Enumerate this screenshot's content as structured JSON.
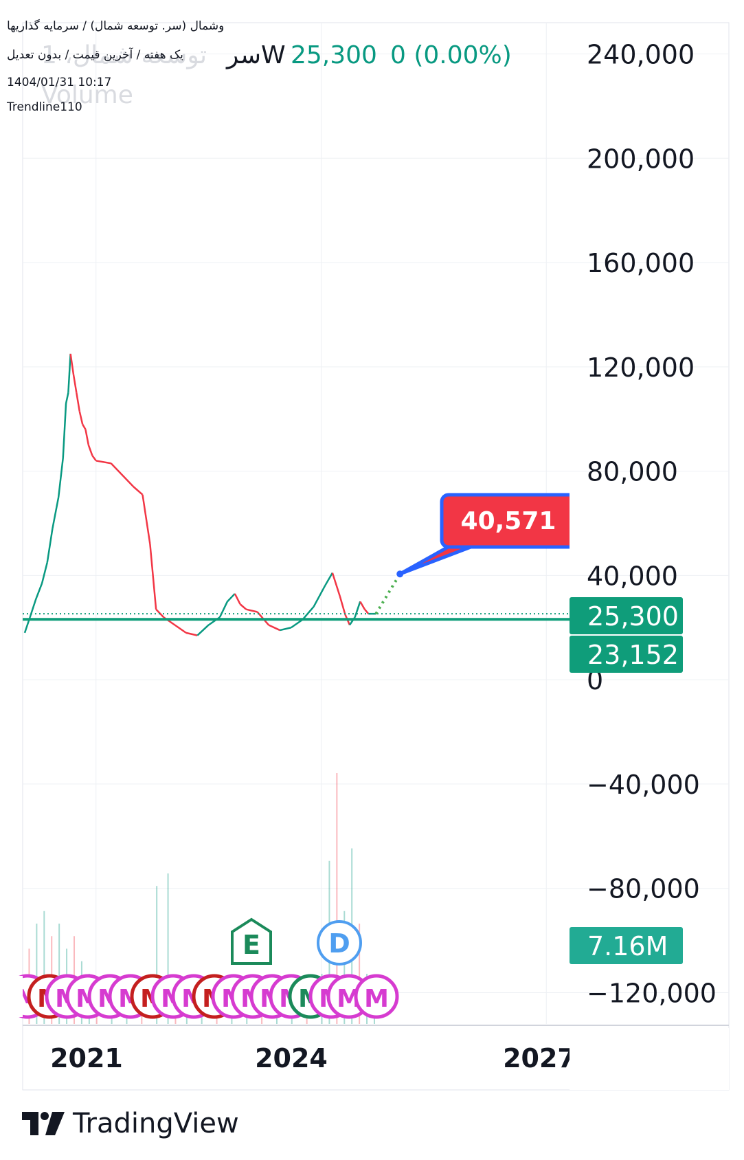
{
  "header": {
    "line1": "وشمال (سر. توسعه شمال) / سرمایه گذاریها",
    "line2": "یک هفته / آخرین قیمت / بدون تعدیل",
    "line3": "1404/01/31 10:17",
    "line4": "Trendline110",
    "ticker_symbol": "سرW",
    "ticker_ghost": "توسعه شمال، 1",
    "volume_ghost": "Volume",
    "price": "25,300",
    "change": "0 (0.00%)"
  },
  "colors": {
    "up": "#089981",
    "down": "#f23645",
    "pricebox": "#0f9d7a",
    "volbox": "#22ab94",
    "callout_fill": "#f23645",
    "callout_border": "#2962ff",
    "earnings": "#1b8a5a",
    "dividend": "#4f9ef0",
    "meeting": "#d63bd0",
    "split": "#c41f1f"
  },
  "price_labels": {
    "last": "25,300",
    "trend": "23,152",
    "callout": "40,571",
    "volume": "7.16M"
  },
  "markers": {
    "earnings": "E",
    "dividend": "D",
    "meeting": "M"
  },
  "brand": {
    "name": "TradingView",
    "logo": "tradingview-logo-icon"
  },
  "chart_data": {
    "type": "line",
    "title": "",
    "xlabel": "",
    "ylabel": "",
    "x_ticks": [
      "2021",
      "2024",
      "2027"
    ],
    "y_ticks": [
      240000,
      200000,
      160000,
      120000,
      80000,
      40000,
      0,
      -40000,
      -80000,
      -120000
    ],
    "ylim": [
      -132000,
      252000
    ],
    "xlim": [
      2020.05,
      2027.3
    ],
    "grid": true,
    "series": [
      {
        "role": "weekly close",
        "x": [
          2020.05,
          2020.15,
          2020.25,
          2020.35,
          2020.45,
          2020.55,
          2020.62,
          2020.68,
          2020.72,
          2020.77,
          2020.82,
          2020.88,
          2020.93,
          2021.0,
          2021.05,
          2021.1,
          2021.2,
          2021.3,
          2021.45,
          2021.6,
          2021.7,
          2021.85,
          2022.0,
          2022.1,
          2022.2,
          2022.3,
          2022.35,
          2022.5,
          2022.7,
          2022.9,
          2023.05,
          2023.2,
          2023.35,
          2023.5,
          2023.6,
          2023.75,
          2023.9,
          2024.0,
          2024.15,
          2024.3,
          2024.45,
          2024.6,
          2024.75,
          2024.85,
          2025.0,
          2025.05,
          2025.15,
          2025.25,
          2025.3,
          2025.35,
          2025.45
        ],
        "values": [
          20000,
          28000,
          36000,
          45000,
          62000,
          80000,
          106000,
          120000,
          113000,
          104000,
          102000,
          97000,
          90000,
          84000,
          84000,
          84000,
          83000,
          83000,
          73000,
          72000,
          52000,
          26000,
          22000,
          18000,
          16000,
          18000,
          20000,
          22000,
          25000,
          31000,
          26000,
          26000,
          22000,
          20000,
          19000,
          21000,
          26000,
          30000,
          36000,
          38000,
          32000,
          27000,
          25300,
          25300,
          25300,
          25300,
          25300,
          25300,
          25300,
          25300,
          25300
        ]
      }
    ],
    "price_series": {
      "x": [
        2020.05,
        2020.12,
        2020.2,
        2020.28,
        2020.35,
        2020.42,
        2020.5,
        2020.56,
        2020.6,
        2020.63,
        2020.66,
        2020.7,
        2020.74,
        2020.78,
        2020.82,
        2020.86,
        2020.9,
        2020.95,
        2021.0,
        2021.2,
        2021.5,
        2021.62,
        2021.72,
        2021.8,
        2021.9,
        2022.05,
        2022.2,
        2022.35,
        2022.5,
        2022.65,
        2022.75,
        2022.85,
        2022.92,
        2023.0,
        2023.15,
        2023.3,
        2023.45,
        2023.6,
        2023.75,
        2023.9,
        2024.05,
        2024.15,
        2024.25,
        2024.32,
        2024.38,
        2024.45,
        2024.52,
        2024.58,
        2024.63,
        2024.68,
        2024.73
      ],
      "values": [
        18000,
        24000,
        31000,
        37000,
        45000,
        58000,
        70000,
        85000,
        106000,
        110000,
        125000,
        117000,
        110000,
        103000,
        98000,
        96000,
        90000,
        86000,
        84000,
        83000,
        74000,
        71000,
        52000,
        27000,
        24000,
        21000,
        18000,
        17000,
        21000,
        24000,
        30000,
        33000,
        29000,
        27000,
        26000,
        21000,
        19000,
        20000,
        23000,
        28000,
        36000,
        41000,
        32000,
        25000,
        21000,
        24000,
        30000,
        27000,
        25300,
        25300,
        25300
      ]
    },
    "volume_series": {
      "x": [
        2020.1,
        2020.2,
        2020.3,
        2020.4,
        2020.5,
        2020.6,
        2020.7,
        2020.8,
        2020.9,
        2021.0,
        2021.2,
        2021.4,
        2021.6,
        2021.8,
        2021.95,
        2022.05,
        2022.2,
        2022.4,
        2022.6,
        2022.8,
        2023.0,
        2023.2,
        2023.4,
        2023.6,
        2023.8,
        2024.0,
        2024.1,
        2024.2,
        2024.3,
        2024.4,
        2024.5,
        2024.6,
        2024.7
      ],
      "values": [
        30,
        40,
        45,
        35,
        40,
        30,
        35,
        25,
        20,
        15,
        15,
        12,
        10,
        55,
        60,
        12,
        10,
        12,
        14,
        16,
        14,
        12,
        12,
        12,
        14,
        20,
        65,
        100,
        45,
        70,
        40,
        20,
        15
      ]
    },
    "trendline": {
      "y": 23152
    },
    "last_price": 25300,
    "forecast": {
      "from": [
        2024.73,
        25300
      ],
      "to": [
        2025.05,
        40571
      ],
      "label": "40,571"
    },
    "legend": "none"
  }
}
